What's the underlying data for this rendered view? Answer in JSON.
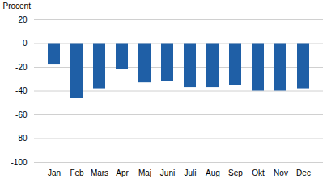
{
  "chart_data": {
    "type": "bar",
    "ylabel": "Procent",
    "categories": [
      "Jan",
      "Feb",
      "Mars",
      "Apr",
      "Maj",
      "Juni",
      "Juli",
      "Aug",
      "Sep",
      "Okt",
      "Nov",
      "Dec"
    ],
    "values": [
      -18,
      -46,
      -38,
      -22,
      -33,
      -32,
      -37,
      -37,
      -35,
      -40,
      -40,
      -38
    ],
    "color": "#1f5fa6",
    "ylim": [
      -100,
      20
    ],
    "yticks": [
      -100,
      -80,
      -60,
      -40,
      -20,
      0,
      20
    ],
    "grid": true
  }
}
